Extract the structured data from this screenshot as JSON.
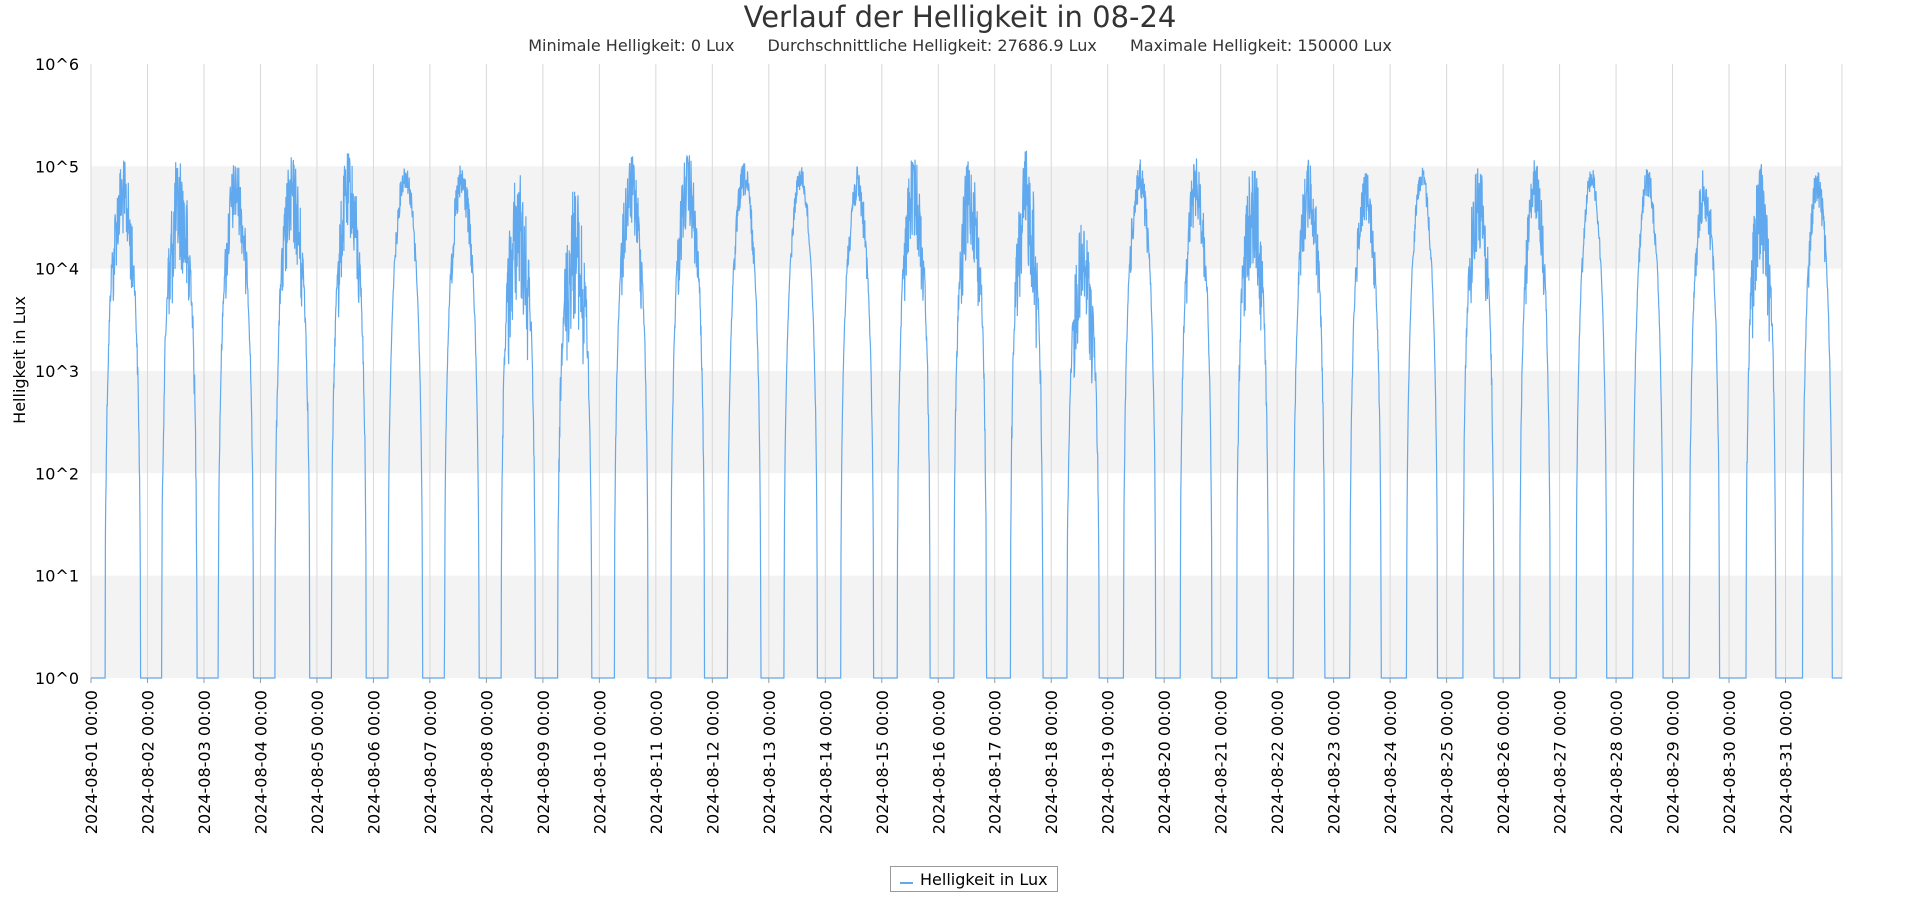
{
  "chart_data": {
    "type": "line",
    "title": "Verlauf der Helligkeit in 08-24",
    "stats": [
      "Minimale Helligkeit: 0 Lux",
      "Durchschnittliche Helligkeit: 27686.9 Lux",
      "Maximale Helligkeit: 150000 Lux"
    ],
    "ylabel": "Helligkeit in Lux",
    "yscale": "log",
    "y_ticks": [
      "10^0",
      "10^1",
      "10^2",
      "10^3",
      "10^4",
      "10^5",
      "10^6"
    ],
    "ylim": [
      1,
      1000000
    ],
    "x_ticks": [
      "2024-08-01 00:00",
      "2024-08-02 00:00",
      "2024-08-03 00:00",
      "2024-08-04 00:00",
      "2024-08-05 00:00",
      "2024-08-06 00:00",
      "2024-08-07 00:00",
      "2024-08-08 00:00",
      "2024-08-09 00:00",
      "2024-08-10 00:00",
      "2024-08-11 00:00",
      "2024-08-12 00:00",
      "2024-08-13 00:00",
      "2024-08-14 00:00",
      "2024-08-15 00:00",
      "2024-08-16 00:00",
      "2024-08-17 00:00",
      "2024-08-18 00:00",
      "2024-08-19 00:00",
      "2024-08-20 00:00",
      "2024-08-21 00:00",
      "2024-08-22 00:00",
      "2024-08-23 00:00",
      "2024-08-24 00:00",
      "2024-08-25 00:00",
      "2024-08-26 00:00",
      "2024-08-27 00:00",
      "2024-08-28 00:00",
      "2024-08-29 00:00",
      "2024-08-30 00:00",
      "2024-08-31 00:00"
    ],
    "xlim": [
      "2024-08-01 00:00",
      "2024-09-01 00:00"
    ],
    "grid": true,
    "legend_position": "bottom-center",
    "series": [
      {
        "name": "Helligkeit in Lux",
        "color": "#61a9ee",
        "daily": [
          {
            "date": "2024-08-01",
            "sunrise": "06:00",
            "sunset": "21:00",
            "peak_lux": 120000,
            "trough_lux": 20000
          },
          {
            "date": "2024-08-02",
            "sunrise": "06:05",
            "sunset": "21:00",
            "peak_lux": 140000,
            "trough_lux": 10000
          },
          {
            "date": "2024-08-03",
            "sunrise": "06:05",
            "sunset": "21:00",
            "peak_lux": 120000,
            "trough_lux": 25000
          },
          {
            "date": "2024-08-04",
            "sunrise": "06:10",
            "sunset": "20:55",
            "peak_lux": 130000,
            "trough_lux": 15000
          },
          {
            "date": "2024-08-05",
            "sunrise": "06:10",
            "sunset": "20:55",
            "peak_lux": 140000,
            "trough_lux": 20000
          },
          {
            "date": "2024-08-06",
            "sunrise": "06:15",
            "sunset": "20:50",
            "peak_lux": 110000,
            "trough_lux": 60000
          },
          {
            "date": "2024-08-07",
            "sunrise": "06:15",
            "sunset": "20:50",
            "peak_lux": 110000,
            "trough_lux": 40000
          },
          {
            "date": "2024-08-08",
            "sunrise": "06:20",
            "sunset": "20:45",
            "peak_lux": 100000,
            "trough_lux": 5000
          },
          {
            "date": "2024-08-09",
            "sunrise": "06:20",
            "sunset": "20:45",
            "peak_lux": 70000,
            "trough_lux": 3000
          },
          {
            "date": "2024-08-10",
            "sunrise": "06:25",
            "sunset": "20:40",
            "peak_lux": 130000,
            "trough_lux": 25000
          },
          {
            "date": "2024-08-11",
            "sunrise": "06:25",
            "sunset": "20:40",
            "peak_lux": 140000,
            "trough_lux": 25000
          },
          {
            "date": "2024-08-12",
            "sunrise": "06:30",
            "sunset": "20:35",
            "peak_lux": 110000,
            "trough_lux": 50000
          },
          {
            "date": "2024-08-13",
            "sunrise": "06:30",
            "sunset": "20:35",
            "peak_lux": 100000,
            "trough_lux": 60000
          },
          {
            "date": "2024-08-14",
            "sunrise": "06:35",
            "sunset": "20:30",
            "peak_lux": 100000,
            "trough_lux": 40000
          },
          {
            "date": "2024-08-15",
            "sunrise": "06:35",
            "sunset": "20:30",
            "peak_lux": 130000,
            "trough_lux": 20000
          },
          {
            "date": "2024-08-16",
            "sunrise": "06:40",
            "sunset": "20:25",
            "peak_lux": 130000,
            "trough_lux": 15000
          },
          {
            "date": "2024-08-17",
            "sunrise": "06:40",
            "sunset": "20:25",
            "peak_lux": 150000,
            "trough_lux": 10000
          },
          {
            "date": "2024-08-18",
            "sunrise": "06:45",
            "sunset": "20:20",
            "peak_lux": 30000,
            "trough_lux": 3000
          },
          {
            "date": "2024-08-19",
            "sunrise": "06:45",
            "sunset": "20:20",
            "peak_lux": 120000,
            "trough_lux": 40000
          },
          {
            "date": "2024-08-20",
            "sunrise": "06:50",
            "sunset": "20:15",
            "peak_lux": 120000,
            "trough_lux": 30000
          },
          {
            "date": "2024-08-21",
            "sunrise": "06:50",
            "sunset": "20:15",
            "peak_lux": 120000,
            "trough_lux": 10000
          },
          {
            "date": "2024-08-22",
            "sunrise": "06:55",
            "sunset": "20:10",
            "peak_lux": 130000,
            "trough_lux": 25000
          },
          {
            "date": "2024-08-23",
            "sunrise": "06:55",
            "sunset": "20:10",
            "peak_lux": 100000,
            "trough_lux": 30000
          },
          {
            "date": "2024-08-24",
            "sunrise": "07:00",
            "sunset": "20:05",
            "peak_lux": 100000,
            "trough_lux": 60000
          },
          {
            "date": "2024-08-25",
            "sunrise": "07:00",
            "sunset": "20:05",
            "peak_lux": 120000,
            "trough_lux": 15000
          },
          {
            "date": "2024-08-26",
            "sunrise": "07:05",
            "sunset": "20:00",
            "peak_lux": 120000,
            "trough_lux": 30000
          },
          {
            "date": "2024-08-27",
            "sunrise": "07:05",
            "sunset": "20:00",
            "peak_lux": 100000,
            "trough_lux": 60000
          },
          {
            "date": "2024-08-28",
            "sunrise": "07:10",
            "sunset": "19:55",
            "peak_lux": 100000,
            "trough_lux": 50000
          },
          {
            "date": "2024-08-29",
            "sunrise": "07:10",
            "sunset": "19:55",
            "peak_lux": 100000,
            "trough_lux": 30000
          },
          {
            "date": "2024-08-30",
            "sunrise": "07:15",
            "sunset": "19:50",
            "peak_lux": 110000,
            "trough_lux": 10000
          },
          {
            "date": "2024-08-31",
            "sunrise": "07:15",
            "sunset": "19:50",
            "peak_lux": 100000,
            "trough_lux": 40000
          }
        ]
      }
    ]
  }
}
